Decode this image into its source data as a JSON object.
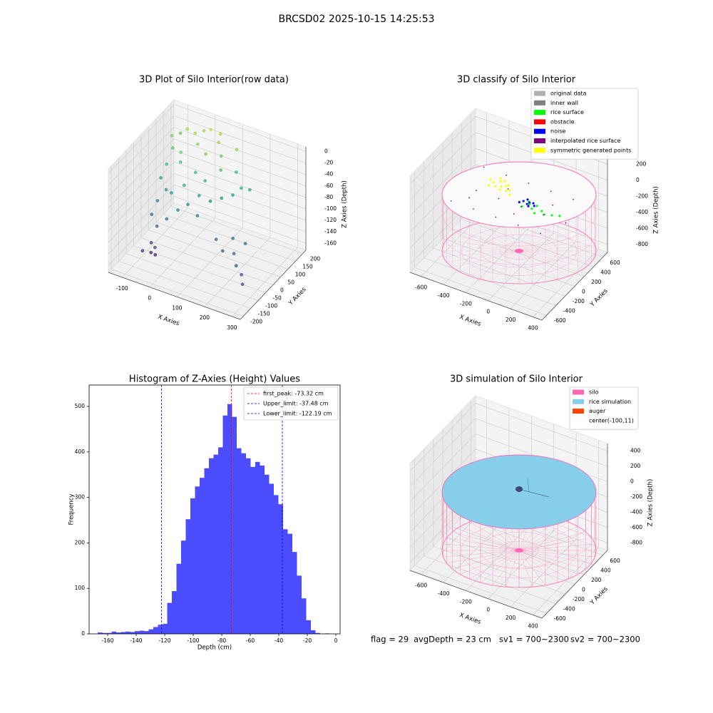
{
  "title": "BRCSD02 2025-10-15 14:25:53",
  "footer": [
    "flag = 29",
    "avgDepth = 23 cm",
    "sv1 = 700~2300",
    "sv2 = 700~2300"
  ],
  "chart_data": [
    {
      "type": "scatter3d",
      "title": "3D Plot of Silo Interior(row data)",
      "xlabel": "X Axies",
      "ylabel": "Y Axies",
      "zlabel": "Z Axies (Depth)",
      "xlim": [
        -150,
        330
      ],
      "ylim": [
        -220,
        220
      ],
      "zlim": [
        -172,
        8
      ],
      "xticks": [
        -100,
        0,
        100,
        200,
        300
      ],
      "yticks": [
        -200,
        -150,
        -100,
        -50,
        0,
        50,
        100,
        150,
        200
      ],
      "zticks": [
        -160,
        -140,
        -120,
        -100,
        -80,
        -60,
        -40,
        -20,
        0
      ],
      "colormap": "viridis",
      "x": [
        -120,
        -100,
        -80,
        -60,
        -40,
        -20,
        0,
        20,
        40,
        60,
        80,
        100,
        -90,
        -50,
        10,
        50,
        120,
        -110,
        -30,
        30,
        -100,
        -70,
        -40,
        -10,
        20,
        50,
        80,
        110,
        140,
        -80,
        0,
        60,
        160,
        180,
        -90,
        -60,
        -30,
        150,
        190,
        220,
        250,
        280,
        300,
        200,
        240,
        -70,
        -60,
        -50,
        -80,
        -40
      ],
      "y": [
        150,
        120,
        180,
        100,
        160,
        140,
        190,
        120,
        170,
        150,
        110,
        180,
        60,
        80,
        70,
        60,
        140,
        190,
        200,
        200,
        40,
        20,
        0,
        30,
        0,
        20,
        40,
        60,
        80,
        -20,
        -30,
        -10,
        100,
        120,
        -40,
        -60,
        -50,
        -50,
        -80,
        -60,
        -100,
        -120,
        -150,
        -30,
        -20,
        -80,
        -100,
        -90,
        -120,
        -110
      ],
      "z": [
        -30,
        -40,
        -20,
        -35,
        -15,
        -25,
        -10,
        -30,
        -20,
        -35,
        -45,
        -25,
        -50,
        -45,
        -50,
        -55,
        -50,
        -35,
        -20,
        -15,
        -70,
        -80,
        -75,
        -65,
        -85,
        -70,
        -80,
        -75,
        -70,
        -90,
        -90,
        -95,
        -60,
        -65,
        -110,
        -120,
        -105,
        -110,
        -115,
        -120,
        -125,
        -130,
        -135,
        -105,
        -110,
        -145,
        -155,
        -160,
        -150,
        -140
      ]
    },
    {
      "type": "scatter3d",
      "title": "3D classify of Silo Interior",
      "xlabel": "X Axies",
      "ylabel": "Y Axies",
      "zlabel": "Z Axies (Depth)",
      "xlim": [
        -700,
        480
      ],
      "ylim": [
        -700,
        700
      ],
      "zlim": [
        -900,
        300
      ],
      "xticks": [
        -600,
        -400,
        -200,
        0,
        200,
        400
      ],
      "yticks": [
        -600,
        -400,
        -200,
        0,
        200,
        400,
        600
      ],
      "zticks": [
        -800,
        -600,
        -400,
        -200,
        0,
        200
      ],
      "legend": "upper right",
      "series": [
        {
          "name": "original data",
          "color": "#b0b0b0",
          "x": [],
          "y": [],
          "z": []
        },
        {
          "name": "inner wall",
          "color": "#808080",
          "x": [],
          "y": [],
          "z": []
        },
        {
          "name": "rice surface",
          "color": "#00ff00",
          "x": [
            -40,
            0,
            40,
            80,
            120,
            160,
            200,
            260,
            320,
            20,
            100
          ],
          "y": [
            60,
            20,
            80,
            40,
            0,
            60,
            20,
            40,
            60,
            120,
            100
          ],
          "z": [
            -150,
            -160,
            -150,
            -160,
            -170,
            -160,
            -160,
            -150,
            -140,
            -150,
            -150
          ]
        },
        {
          "name": "obstacle",
          "color": "#ff0000",
          "x": [],
          "y": [],
          "z": []
        },
        {
          "name": "noise",
          "color": "#0000ff",
          "x": [
            -20,
            20,
            60,
            0,
            40,
            -40,
            80,
            30
          ],
          "y": [
            100,
            80,
            120,
            140,
            60,
            60,
            90,
            110
          ],
          "z": [
            -150,
            -155,
            -150,
            -145,
            -160,
            -150,
            -155,
            -150
          ]
        },
        {
          "name": "interpolated rice surface",
          "color": "#800080",
          "x": [
            -500,
            -300,
            -100,
            100,
            300,
            -400,
            -200,
            0,
            200,
            400,
            -500,
            -300,
            -100,
            100,
            300,
            -400,
            -200,
            0,
            200
          ],
          "y": [
            -300,
            -300,
            -300,
            -300,
            -300,
            0,
            0,
            0,
            0,
            0,
            400,
            400,
            400,
            400,
            400,
            -150,
            200,
            -150,
            200
          ],
          "z": [
            -150,
            -150,
            -150,
            -150,
            -150,
            -150,
            -150,
            -150,
            -150,
            -150,
            -150,
            -150,
            -150,
            -150,
            -150,
            -150,
            -150,
            -150,
            -150
          ]
        },
        {
          "name": "symmetric generated points",
          "color": "#ffff00",
          "x": [
            -380,
            -340,
            -300,
            -260,
            -220,
            -180,
            -350,
            -300,
            -250,
            -200,
            -320,
            -270,
            -230,
            -150
          ],
          "y": [
            250,
            220,
            280,
            200,
            260,
            190,
            150,
            170,
            140,
            160,
            320,
            300,
            230,
            120
          ],
          "z": [
            -150,
            -150,
            -150,
            -150,
            -150,
            -150,
            -150,
            -150,
            -150,
            -150,
            -150,
            -150,
            -150,
            -150
          ]
        }
      ]
    },
    {
      "type": "histogram",
      "title": "Histogram of Z-Axies (Height) Values",
      "xlabel": "Depth (cm)",
      "ylabel": "Frequency",
      "xlim": [
        -173,
        3
      ],
      "ylim": [
        0,
        547
      ],
      "xticks": [
        -160,
        -140,
        -120,
        -100,
        -80,
        -60,
        -40,
        -20,
        0
      ],
      "yticks": [
        0,
        100,
        200,
        300,
        400,
        500
      ],
      "color": "#0000ff",
      "alpha": 0.7,
      "legend": "upper right",
      "bins": [
        -167,
        -163.75,
        -160.5,
        -157.25,
        -154,
        -150.75,
        -147.5,
        -144.25,
        -141,
        -137.75,
        -134.5,
        -131.25,
        -128,
        -124.75,
        -121.5,
        -118.25,
        -115,
        -111.75,
        -108.5,
        -105.25,
        -102,
        -98.75,
        -95.5,
        -92.25,
        -89,
        -85.75,
        -82.5,
        -79.25,
        -76,
        -72.75,
        -69.5,
        -66.25,
        -63,
        -59.75,
        -56.5,
        -53.25,
        -50,
        -46.75,
        -43.5,
        -40.25,
        -37,
        -33.75,
        -30.5,
        -27.25,
        -24,
        -20.75,
        -17.5,
        -14.25,
        -11,
        -7.75,
        -4.5
      ],
      "values": [
        3,
        2,
        2,
        5,
        3,
        4,
        5,
        4,
        6,
        7,
        6,
        10,
        15,
        20,
        22,
        68,
        94,
        154,
        205,
        252,
        298,
        324,
        343,
        364,
        386,
        394,
        410,
        480,
        505,
        477,
        408,
        397,
        386,
        367,
        378,
        370,
        350,
        330,
        305,
        285,
        230,
        220,
        180,
        128,
        78,
        30,
        8,
        2,
        0,
        1
      ],
      "lines": [
        {
          "name": "first_peak: -73.32 cm",
          "value": -73.32,
          "color": "#ff0000"
        },
        {
          "name": "Upper_limit: -37.48 cm",
          "value": -37.48,
          "color": "#0000ff"
        },
        {
          "name": "Lower_limit: -122.19 cm",
          "value": -122.19,
          "color": "#0000ff"
        }
      ]
    },
    {
      "type": "scatter3d",
      "title": "3D simulation of Silo Interior",
      "xlabel": "X Axies",
      "ylabel": "Y Axies",
      "zlabel": "Z Axies (Depth)",
      "xlim": [
        -700,
        480
      ],
      "ylim": [
        -700,
        700
      ],
      "zlim": [
        -900,
        500
      ],
      "xticks": [
        -600,
        -400,
        -200,
        0,
        200,
        400
      ],
      "yticks": [
        -600,
        -400,
        -200,
        0,
        200,
        400,
        600
      ],
      "zticks": [
        -800,
        -600,
        -400,
        -200,
        0,
        200,
        400
      ],
      "legend": "upper right",
      "series": [
        {
          "name": "silo",
          "color": "#ff69b4"
        },
        {
          "name": "rice simulation",
          "color": "#87ceeb"
        },
        {
          "name": "auger",
          "color": "#ff4500"
        },
        {
          "name": "center(-100,11)"
        }
      ]
    }
  ]
}
